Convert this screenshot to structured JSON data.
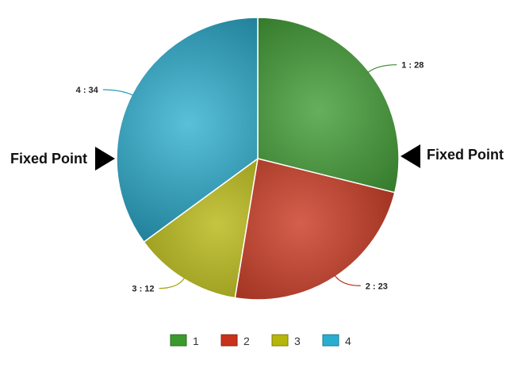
{
  "chart_data": {
    "type": "pie",
    "title": "",
    "categories": [
      "1",
      "2",
      "3",
      "4"
    ],
    "values": [
      28,
      23,
      12,
      34
    ],
    "data_labels": [
      "1 : 28",
      "2 : 23",
      "3 : 12",
      "4 : 34"
    ],
    "colors": [
      "#3b9a2e",
      "#c8321a",
      "#b5b50c",
      "#2aaed0"
    ],
    "start_angle_deg": 0,
    "direction": "clockwise",
    "legend": {
      "position": "bottom",
      "entries": [
        "1",
        "2",
        "3",
        "4"
      ]
    },
    "annotations": [
      {
        "text": "Fixed Point",
        "side": "left",
        "icon": "triangle-pointer-right-icon"
      },
      {
        "text": "Fixed Point",
        "side": "right",
        "icon": "triangle-pointer-left-icon"
      }
    ]
  }
}
